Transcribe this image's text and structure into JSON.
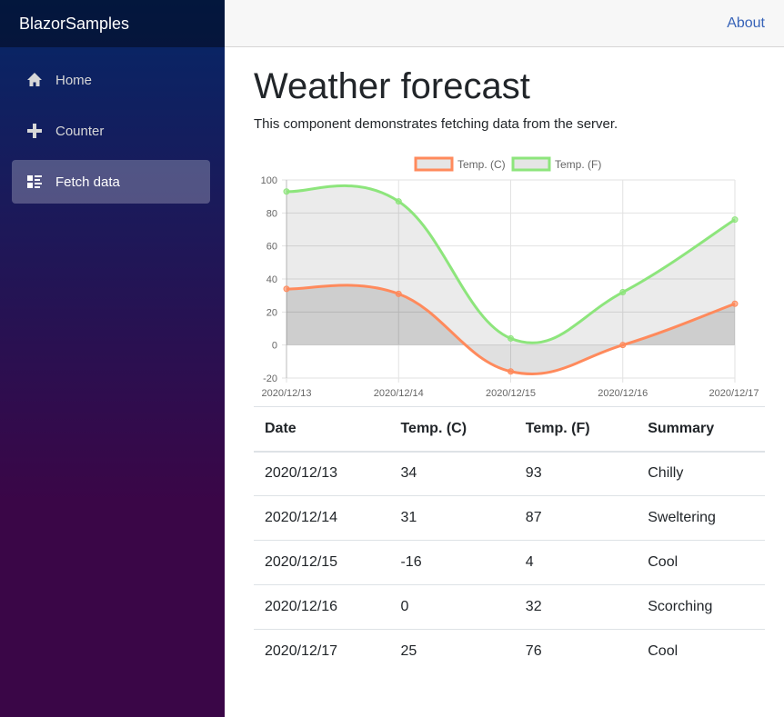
{
  "app": {
    "brand": "BlazorSamples"
  },
  "sidebar": {
    "items": [
      {
        "label": "Home",
        "icon": "home-icon",
        "active": false
      },
      {
        "label": "Counter",
        "icon": "plus-icon",
        "active": false
      },
      {
        "label": "Fetch data",
        "icon": "list-icon",
        "active": true
      }
    ]
  },
  "topbar": {
    "about_label": "About"
  },
  "main": {
    "title": "Weather forecast",
    "description": "This component demonstrates fetching data from the server."
  },
  "chart_data": {
    "type": "area",
    "categories": [
      "2020/12/13",
      "2020/12/14",
      "2020/12/15",
      "2020/12/16",
      "2020/12/17"
    ],
    "series": [
      {
        "name": "Temp. (C)",
        "values": [
          34,
          31,
          -16,
          0,
          25
        ],
        "color": "#ff8a5c"
      },
      {
        "name": "Temp. (F)",
        "values": [
          93,
          87,
          4,
          32,
          76
        ],
        "color": "#8de57c"
      }
    ],
    "yticks": [
      "100",
      "80",
      "60",
      "40",
      "20",
      "0",
      "-20"
    ],
    "ylim": [
      -20,
      100
    ],
    "grid": true,
    "legend_position": "top-center"
  },
  "table": {
    "headers": [
      "Date",
      "Temp. (C)",
      "Temp. (F)",
      "Summary"
    ],
    "rows": [
      [
        "2020/12/13",
        "34",
        "93",
        "Chilly"
      ],
      [
        "2020/12/14",
        "31",
        "87",
        "Sweltering"
      ],
      [
        "2020/12/15",
        "-16",
        "4",
        "Cool"
      ],
      [
        "2020/12/16",
        "0",
        "32",
        "Scorching"
      ],
      [
        "2020/12/17",
        "25",
        "76",
        "Cool"
      ]
    ]
  }
}
